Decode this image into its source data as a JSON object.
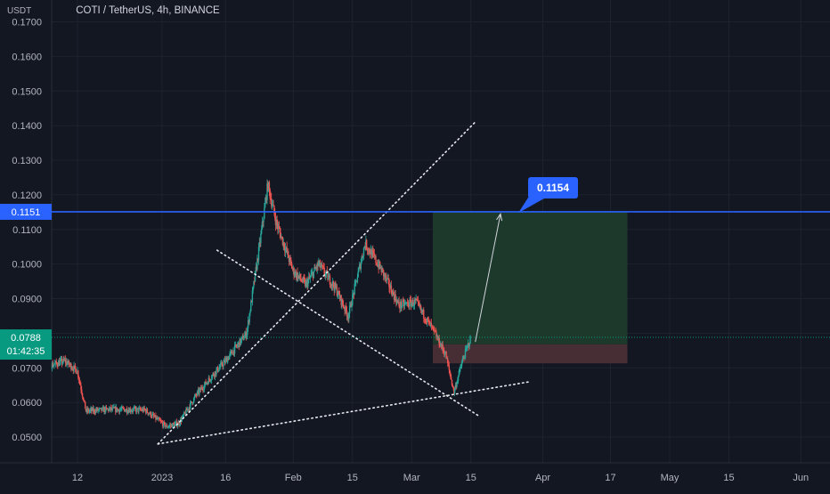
{
  "header": {
    "unit": "USDT",
    "symbol_line": "COTI / TetherUS, 4h, BINANCE"
  },
  "price_axis": {
    "ticks": [
      "0.0500",
      "0.0600",
      "0.0700",
      "0.0800",
      "0.0900",
      "0.1000",
      "0.1100",
      "0.1200",
      "0.1300",
      "0.1400",
      "0.1500",
      "0.1600",
      "0.1700"
    ],
    "level_badge": "0.1151",
    "current_price": "0.0788",
    "countdown": "01:42:35"
  },
  "time_axis": {
    "ticks": [
      "12",
      "2023",
      "16",
      "Feb",
      "15",
      "Mar",
      "15",
      "Apr",
      "17",
      "May",
      "15",
      "Jun"
    ]
  },
  "annotation": {
    "target_label": "0.1154"
  },
  "colors": {
    "background": "#131722",
    "up": "#26a69a",
    "down": "#ef5350",
    "level_line": "#2962ff",
    "profit_zone": "#1e3b2c",
    "loss_zone": "#4a2f36",
    "badge": "#2962ff",
    "current_badge": "#089981"
  },
  "chart_data": {
    "type": "candlestick",
    "title": "COTI / TetherUS, 4h, BINANCE",
    "ylabel": "USDT",
    "ylim": [
      0.046,
      0.172
    ],
    "level": 0.1151,
    "target": 0.1154,
    "current_price": 0.0788,
    "entry": 0.0768,
    "stop": 0.0713,
    "price_path_approx": [
      {
        "date": "Nov 30",
        "close": 0.071
      },
      {
        "date": "Dec 4",
        "close": 0.07
      },
      {
        "date": "Dec 9",
        "close": 0.072
      },
      {
        "date": "Dec 12",
        "close": 0.069
      },
      {
        "date": "Dec 14",
        "close": 0.0575
      },
      {
        "date": "Dec 20",
        "close": 0.058
      },
      {
        "date": "Dec 28",
        "close": 0.0578
      },
      {
        "date": "Jan 2",
        "close": 0.053
      },
      {
        "date": "Jan 5",
        "close": 0.054
      },
      {
        "date": "Jan 9",
        "close": 0.062
      },
      {
        "date": "Jan 13",
        "close": 0.068
      },
      {
        "date": "Jan 16",
        "close": 0.072
      },
      {
        "date": "Jan 21",
        "close": 0.08
      },
      {
        "date": "Jan 24",
        "close": 0.105
      },
      {
        "date": "Jan 26",
        "close": 0.123
      },
      {
        "date": "Jan 28",
        "close": 0.112
      },
      {
        "date": "Feb 1",
        "close": 0.098
      },
      {
        "date": "Feb 4",
        "close": 0.094
      },
      {
        "date": "Feb 7",
        "close": 0.1
      },
      {
        "date": "Feb 11",
        "close": 0.093
      },
      {
        "date": "Feb 14",
        "close": 0.085
      },
      {
        "date": "Feb 18",
        "close": 0.106
      },
      {
        "date": "Feb 22",
        "close": 0.098
      },
      {
        "date": "Feb 26",
        "close": 0.088
      },
      {
        "date": "Mar 2",
        "close": 0.089
      },
      {
        "date": "Mar 6",
        "close": 0.081
      },
      {
        "date": "Mar 9",
        "close": 0.074
      },
      {
        "date": "Mar 11",
        "close": 0.063
      },
      {
        "date": "Mar 13",
        "close": 0.072
      },
      {
        "date": "Mar 15",
        "close": 0.0788
      }
    ],
    "trendlines": [
      {
        "style": "dotted",
        "from": {
          "date": "Dec 31",
          "price": 0.048
        },
        "to": {
          "date": "Mar 16",
          "price": 0.141
        }
      },
      {
        "style": "dotted",
        "from": {
          "date": "Jan 14",
          "price": 0.104
        },
        "to": {
          "date": "Mar 17",
          "price": 0.056
        }
      },
      {
        "style": "dotted",
        "from": {
          "date": "Dec 31",
          "price": 0.048
        },
        "to": {
          "date": "Mar 29",
          "price": 0.066
        }
      }
    ],
    "grid": true
  }
}
